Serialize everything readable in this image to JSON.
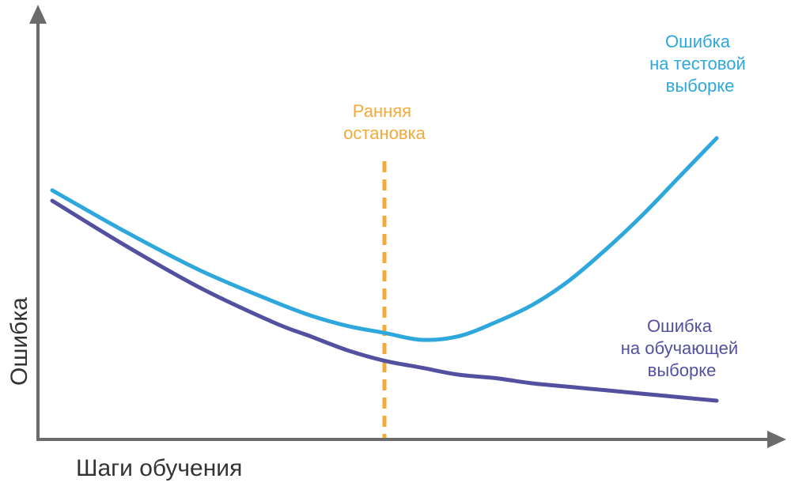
{
  "colors": {
    "axis": "#6b6b6b",
    "test": "#2ea8dc",
    "train": "#5450a0",
    "stop": "#f2ab3b"
  },
  "chart_data": {
    "type": "line",
    "xlabel": "Шаги обучения",
    "ylabel": "Ошибка",
    "xlim": [
      0,
      100
    ],
    "ylim": [
      0,
      100
    ],
    "grid": false,
    "series": [
      {
        "name": "Ошибка на тестовой выборке",
        "label_lines": [
          "Ошибка",
          "на тестовой",
          "выборке"
        ],
        "x": [
          0,
          10,
          20,
          30,
          35,
          40,
          45,
          50,
          55,
          60,
          65,
          70,
          75,
          80,
          85,
          90
        ],
        "y": [
          68,
          56,
          45,
          36,
          32,
          29,
          27,
          25,
          26,
          30,
          35,
          42,
          51,
          61,
          72,
          83
        ]
      },
      {
        "name": "Ошибка на обучающей выборке",
        "label_lines": [
          "Ошибка",
          "на обучающей",
          "выборке"
        ],
        "x": [
          0,
          10,
          20,
          30,
          35,
          40,
          45,
          50,
          55,
          60,
          65,
          70,
          75,
          80,
          85,
          90
        ],
        "y": [
          65,
          52,
          40,
          30,
          26,
          22,
          19,
          17,
          15,
          14,
          12.5,
          11.5,
          10.5,
          9.5,
          8.5,
          7.5
        ]
      }
    ],
    "annotations": [
      {
        "type": "vline",
        "x": 45,
        "label_lines": [
          "Ранняя",
          "остановка"
        ]
      }
    ]
  }
}
